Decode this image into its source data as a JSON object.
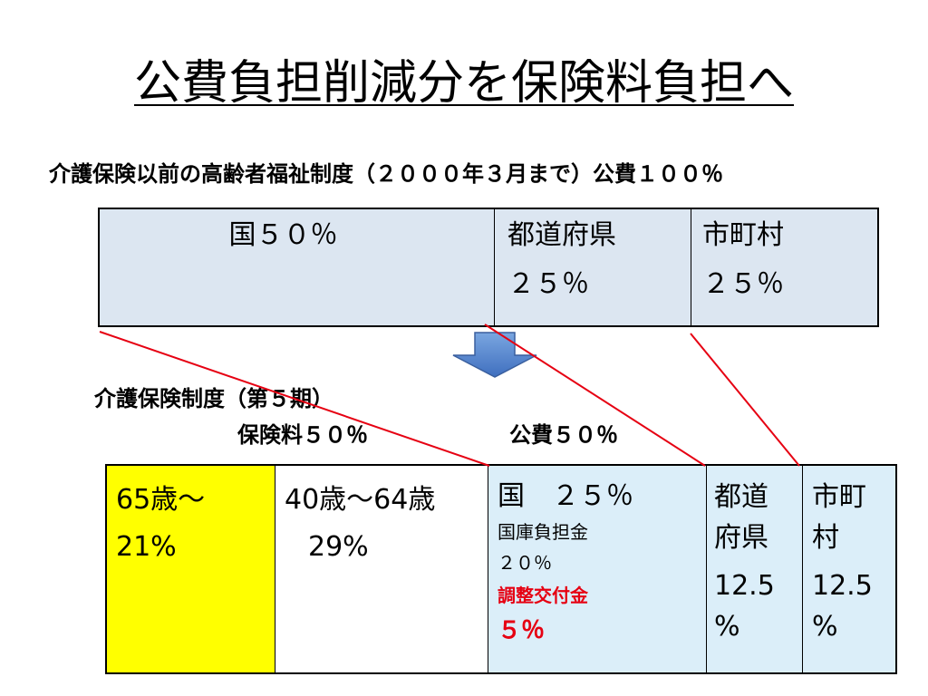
{
  "title": "公費負担削減分を保険料負担へ",
  "subtitle": "介護保険以前の高齢者福祉制度（２０００年３月まで）公費１００％",
  "top_table": {
    "kuni": "国５０％",
    "pref_name": "都道府県",
    "pref_pct": "２５％",
    "city_name": "市町村",
    "city_pct": "２５％"
  },
  "system_label": "介護保険制度（第５期）",
  "insurance_label": "保険料５０％",
  "public_label": "公費５０％",
  "bottom_table": {
    "age65_name": "65歳～",
    "age65_pct": "21%",
    "age40_name": "40歳～64歳",
    "age40_pct": "29%",
    "kuni_head": "国　２５％",
    "kuni_sub1": "国庫負担金",
    "kuni_sub2": "２０％",
    "kuni_adj": "調整交付金",
    "kuni_adj_pct": "５％",
    "pref_line1": "都道",
    "pref_line2": "府県",
    "pref_pct1": "12.5",
    "pref_pct2": "%",
    "city_line1": "市町",
    "city_line2": "村",
    "city_pct1": "12.5",
    "city_pct2": "%"
  },
  "colors": {
    "top_fill": "#dce6f1",
    "public_fill": "#dbeef9",
    "age65_fill": "#ffff00",
    "line_red": "#e60012",
    "arrow_fill": "#5b8fd6"
  }
}
